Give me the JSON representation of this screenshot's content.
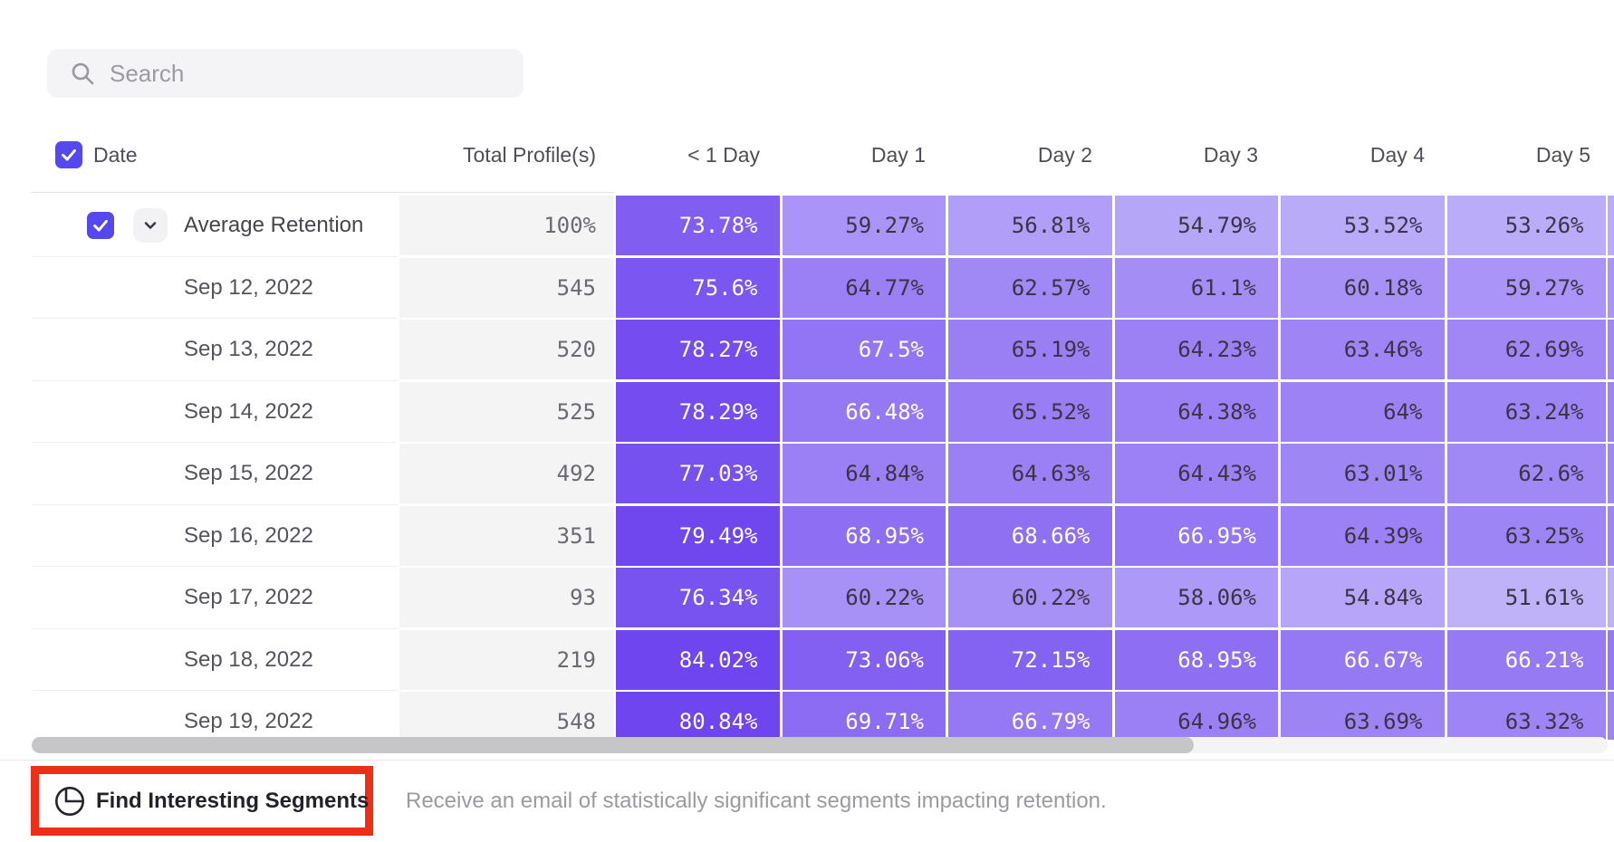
{
  "search": {
    "placeholder": "Search"
  },
  "table": {
    "header": {
      "date": "Date",
      "total": "Total Profile(s)",
      "days": [
        "< 1 Day",
        "Day 1",
        "Day 2",
        "Day 3",
        "Day 4",
        "Day 5"
      ]
    },
    "rows": [
      {
        "label": "Average Retention",
        "expandable": true,
        "checked": true,
        "total": "100%",
        "values": [
          "73.78%",
          "59.27%",
          "56.81%",
          "54.79%",
          "53.52%",
          "53.26%"
        ]
      },
      {
        "label": "Sep 12, 2022",
        "expandable": false,
        "checked": false,
        "total": "545",
        "values": [
          "75.6%",
          "64.77%",
          "62.57%",
          "61.1%",
          "60.18%",
          "59.27%"
        ]
      },
      {
        "label": "Sep 13, 2022",
        "expandable": false,
        "checked": false,
        "total": "520",
        "values": [
          "78.27%",
          "67.5%",
          "65.19%",
          "64.23%",
          "63.46%",
          "62.69%"
        ]
      },
      {
        "label": "Sep 14, 2022",
        "expandable": false,
        "checked": false,
        "total": "525",
        "values": [
          "78.29%",
          "66.48%",
          "65.52%",
          "64.38%",
          "64%",
          "63.24%"
        ]
      },
      {
        "label": "Sep 15, 2022",
        "expandable": false,
        "checked": false,
        "total": "492",
        "values": [
          "77.03%",
          "64.84%",
          "64.63%",
          "64.43%",
          "63.01%",
          "62.6%"
        ]
      },
      {
        "label": "Sep 16, 2022",
        "expandable": false,
        "checked": false,
        "total": "351",
        "values": [
          "79.49%",
          "68.95%",
          "68.66%",
          "66.95%",
          "64.39%",
          "63.25%"
        ]
      },
      {
        "label": "Sep 17, 2022",
        "expandable": false,
        "checked": false,
        "total": "93",
        "values": [
          "76.34%",
          "60.22%",
          "60.22%",
          "58.06%",
          "54.84%",
          "51.61%"
        ]
      },
      {
        "label": "Sep 18, 2022",
        "expandable": false,
        "checked": false,
        "total": "219",
        "values": [
          "84.02%",
          "73.06%",
          "72.15%",
          "68.95%",
          "66.67%",
          "66.21%"
        ]
      },
      {
        "label": "Sep 19, 2022",
        "expandable": false,
        "checked": false,
        "total": "548",
        "values": [
          "80.84%",
          "69.71%",
          "66.79%",
          "64.96%",
          "63.69%",
          "63.32%"
        ]
      }
    ]
  },
  "footer": {
    "button_label": "Find Interesting Segments",
    "description": "Receive an email of statistically significant segments impacting retention."
  },
  "colors": {
    "accent_checkbox": "#5448ee",
    "heat_light": "#c4b8fa",
    "heat_dark": "#6f45ef",
    "heat_text_dark": "#3a3444",
    "heat_text_light": "#ffffff",
    "highlight_red": "#ed2f17"
  },
  "chart_data": {
    "type": "heatmap",
    "title": "Retention by cohort date",
    "columns": [
      "< 1 Day",
      "Day 1",
      "Day 2",
      "Day 3",
      "Day 4",
      "Day 5"
    ],
    "rows": [
      "Average Retention",
      "Sep 12, 2022",
      "Sep 13, 2022",
      "Sep 14, 2022",
      "Sep 15, 2022",
      "Sep 16, 2022",
      "Sep 17, 2022",
      "Sep 18, 2022",
      "Sep 19, 2022"
    ],
    "totals": [
      "100%",
      545,
      520,
      525,
      492,
      351,
      93,
      219,
      548
    ],
    "values": [
      [
        73.78,
        59.27,
        56.81,
        54.79,
        53.52,
        53.26
      ],
      [
        75.6,
        64.77,
        62.57,
        61.1,
        60.18,
        59.27
      ],
      [
        78.27,
        67.5,
        65.19,
        64.23,
        63.46,
        62.69
      ],
      [
        78.29,
        66.48,
        65.52,
        64.38,
        64.0,
        63.24
      ],
      [
        77.03,
        64.84,
        64.63,
        64.43,
        63.01,
        62.6
      ],
      [
        79.49,
        68.95,
        68.66,
        66.95,
        64.39,
        63.25
      ],
      [
        76.34,
        60.22,
        60.22,
        58.06,
        54.84,
        51.61
      ],
      [
        84.02,
        73.06,
        72.15,
        68.95,
        66.67,
        66.21
      ],
      [
        80.84,
        69.71,
        66.79,
        64.96,
        63.69,
        63.32
      ]
    ],
    "color_domain": [
      50,
      85
    ],
    "legend_position": "none"
  }
}
